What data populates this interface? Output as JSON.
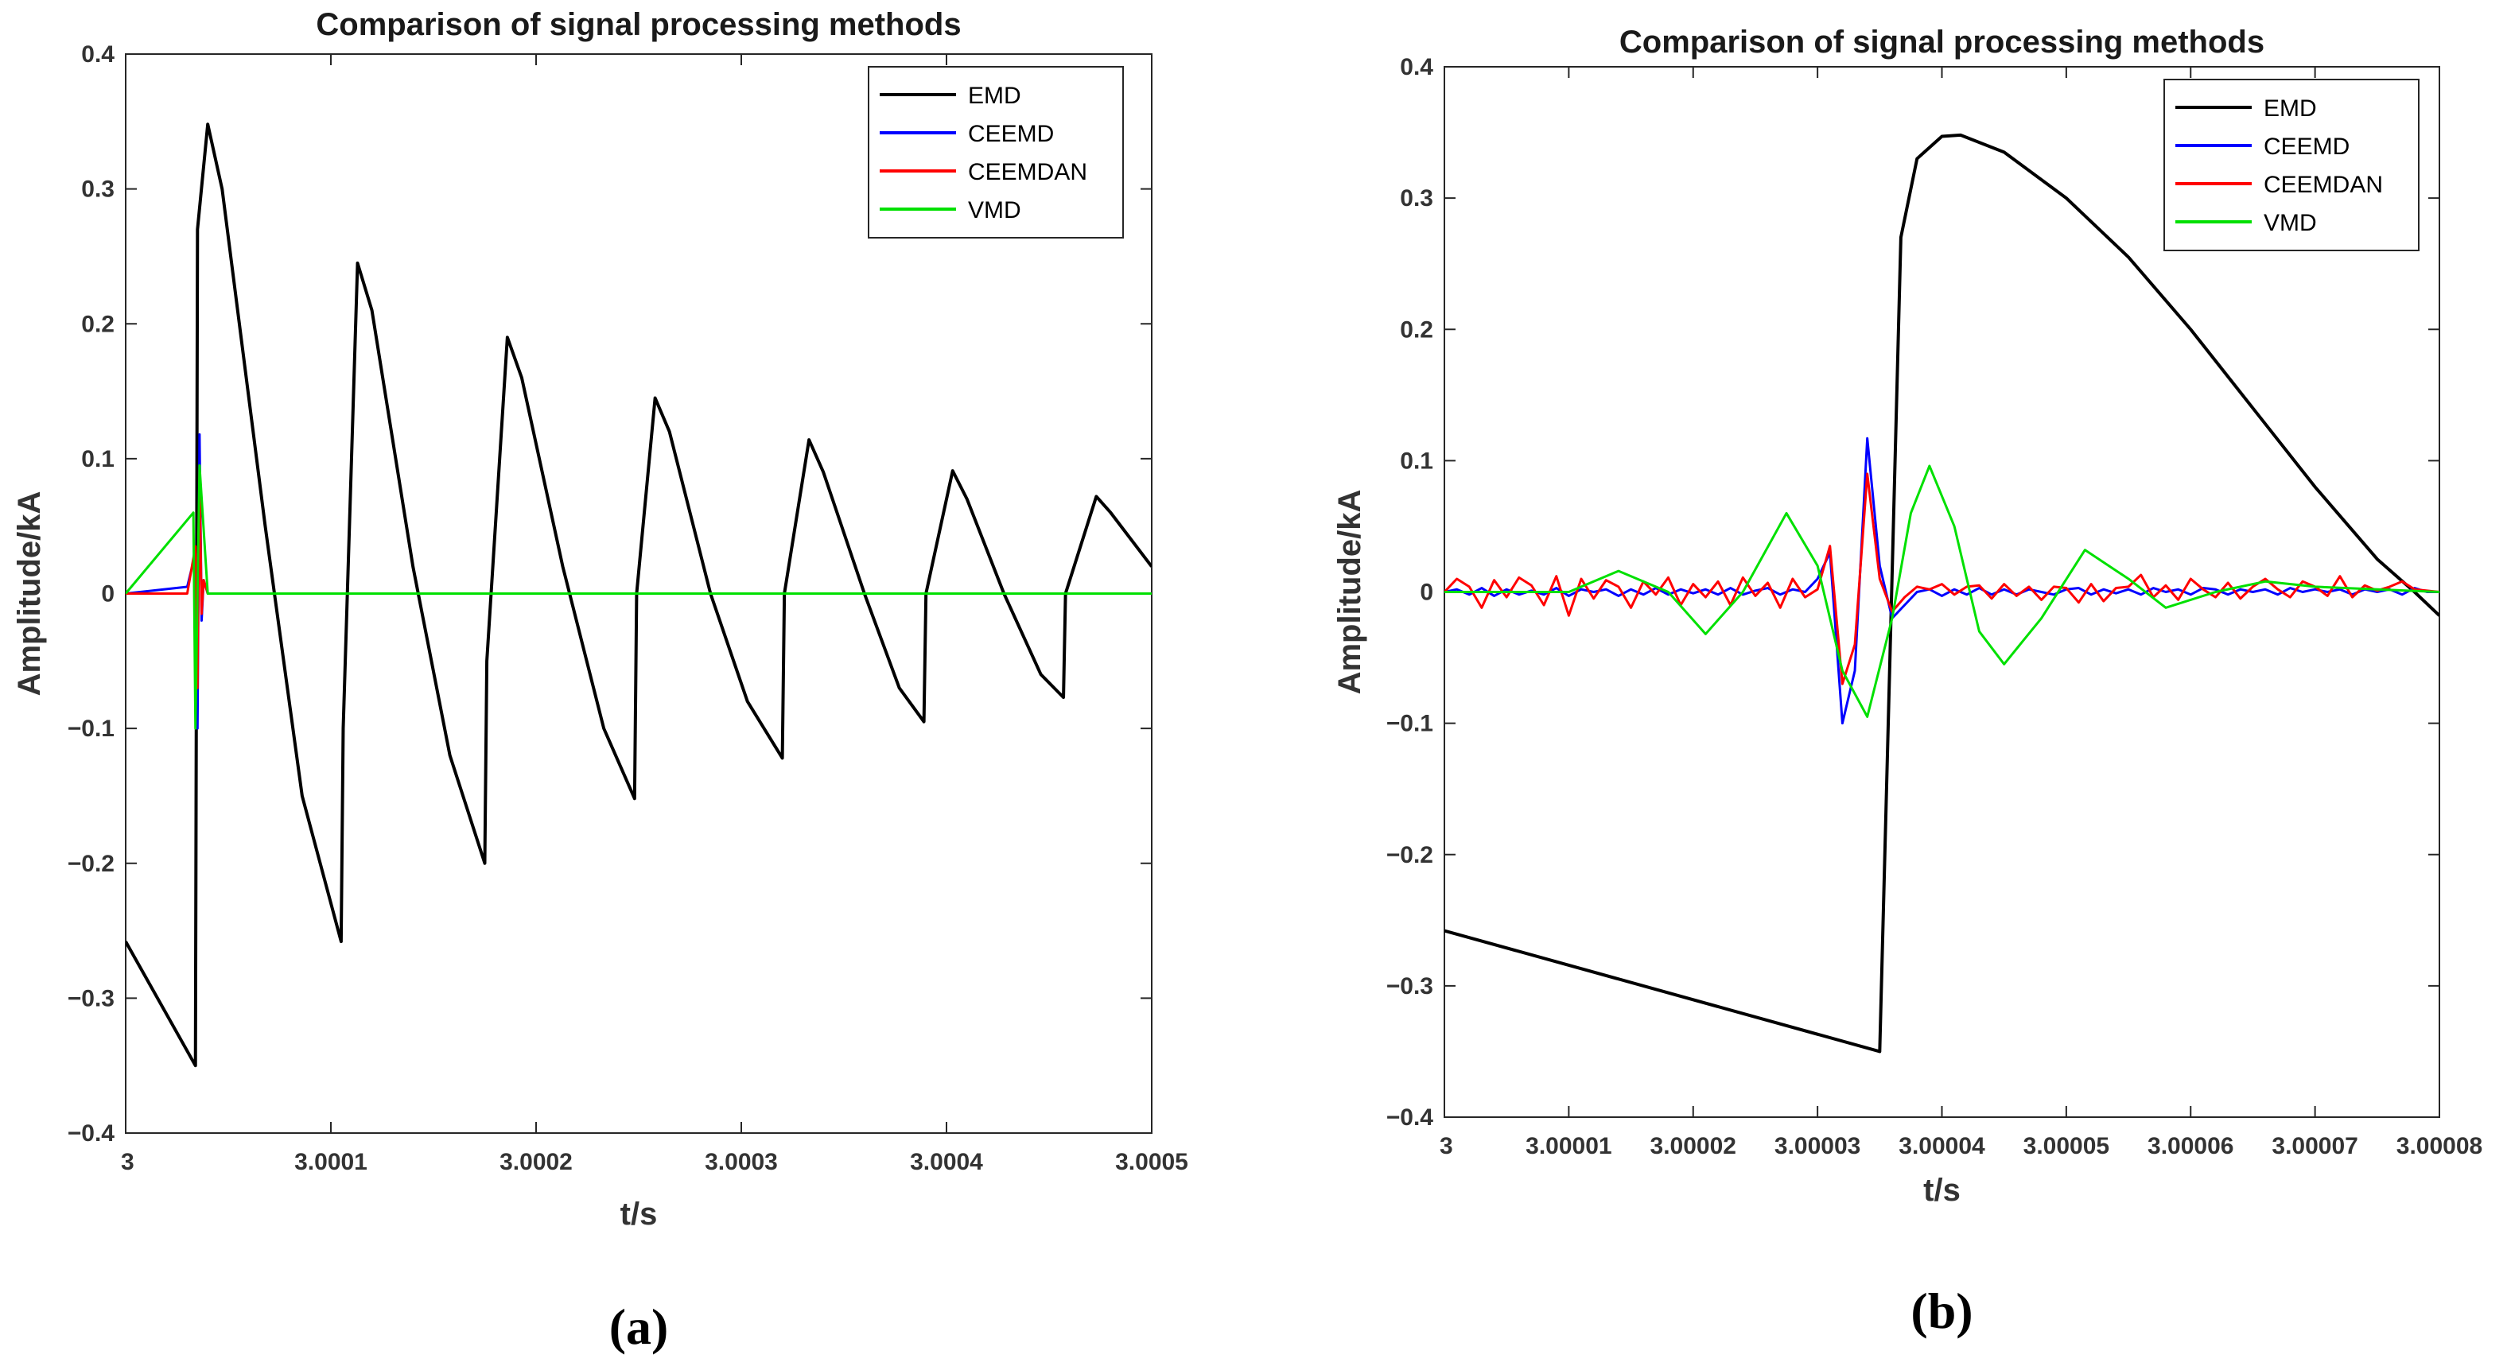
{
  "chart_data": [
    {
      "type": "line",
      "title": "Comparison of signal processing methods",
      "xlabel": "t/s",
      "ylabel": "Amplitude/kA",
      "panel_label": "(a)",
      "xlim": [
        3,
        3.0005
      ],
      "ylim": [
        -0.4,
        0.4
      ],
      "xticks": [
        3,
        3.0001,
        3.0002,
        3.0003,
        3.0004,
        3.0005
      ],
      "xtick_labels": [
        "3",
        "3.0001",
        "3.0002",
        "3.0003",
        "3.0004",
        "3.0005"
      ],
      "yticks": [
        -0.4,
        -0.3,
        -0.2,
        -0.1,
        0,
        0.1,
        0.2,
        0.3,
        0.4
      ],
      "ytick_labels": [
        "−0.4",
        "−0.3",
        "−0.2",
        "−0.1",
        "0",
        "0.1",
        "0.2",
        "0.3",
        "0.4"
      ],
      "legend_position": "top-right",
      "series": [
        {
          "name": "EMD",
          "color": "#000000",
          "x": [
            3,
            3.000034,
            3.000035,
            3.00004,
            3.000047,
            3.000068,
            3.000086,
            3.000105,
            3.000106,
            3.000113,
            3.00012,
            3.00014,
            3.000158,
            3.000175,
            3.000176,
            3.000186,
            3.000193,
            3.000213,
            3.000233,
            3.000248,
            3.000249,
            3.000258,
            3.000265,
            3.000285,
            3.000303,
            3.00032,
            3.000321,
            3.000333,
            3.00034,
            3.00036,
            3.000377,
            3.000389,
            3.00039,
            3.000403,
            3.00041,
            3.000428,
            3.000446,
            3.000457,
            3.000458,
            3.000473,
            3.00048,
            3.0005
          ],
          "values": [
            -0.258,
            -0.35,
            0.27,
            0.348,
            0.3,
            0.05,
            -0.15,
            -0.258,
            -0.1,
            0.245,
            0.21,
            0.02,
            -0.12,
            -0.2,
            -0.05,
            0.19,
            0.16,
            0.02,
            -0.1,
            -0.152,
            0.0,
            0.145,
            0.12,
            0.0,
            -0.08,
            -0.122,
            0.0,
            0.114,
            0.09,
            0.0,
            -0.07,
            -0.095,
            0.0,
            0.091,
            0.07,
            0.0,
            -0.06,
            -0.077,
            0.0,
            0.072,
            0.06,
            0.02
          ]
        },
        {
          "name": "CEEMD",
          "color": "#0000ff",
          "x": [
            3,
            3.00003,
            3.000034,
            3.000035,
            3.000036,
            3.000037,
            3.000038,
            3.00004,
            3.0005
          ],
          "values": [
            0.0,
            0.005,
            0.03,
            -0.1,
            0.118,
            -0.02,
            0.01,
            0.0,
            0.0
          ]
        },
        {
          "name": "CEEMDAN",
          "color": "#ff0000",
          "x": [
            3,
            3.00003,
            3.000034,
            3.000035,
            3.000036,
            3.000037,
            3.000038,
            3.00004,
            3.0005
          ],
          "values": [
            0.0,
            0.0,
            0.035,
            -0.07,
            0.092,
            -0.015,
            0.01,
            0.0,
            0.0
          ]
        },
        {
          "name": "VMD",
          "color": "#00e000",
          "x": [
            3,
            3.000033,
            3.000034,
            3.000035,
            3.000036,
            3.00004,
            3.0001,
            3.0002,
            3.0003,
            3.0004,
            3.0005
          ],
          "values": [
            0.0,
            0.06,
            -0.1,
            0.0,
            0.095,
            0.0,
            0.0,
            0.0,
            0.0,
            0.0,
            0.0
          ]
        }
      ]
    },
    {
      "type": "line",
      "title": "Comparison of signal processing methods",
      "xlabel": "t/s",
      "ylabel": "Amplitude/kA",
      "panel_label": "(b)",
      "xlim": [
        3,
        3.00008
      ],
      "ylim": [
        -0.4,
        0.4
      ],
      "xticks": [
        3,
        3.00001,
        3.00002,
        3.00003,
        3.00004,
        3.00005,
        3.00006,
        3.00007,
        3.00008
      ],
      "xtick_labels": [
        "3",
        "3.00001",
        "3.00002",
        "3.00003",
        "3.00004",
        "3.00005",
        "3.00006",
        "3.00007",
        "3.00008"
      ],
      "yticks": [
        -0.4,
        -0.3,
        -0.2,
        -0.1,
        0,
        0.1,
        0.2,
        0.3,
        0.4
      ],
      "ytick_labels": [
        "−0.4",
        "−0.3",
        "−0.2",
        "−0.1",
        "0",
        "0.1",
        "0.2",
        "0.3",
        "0.4"
      ],
      "legend_position": "top-right",
      "series": [
        {
          "name": "EMD",
          "color": "#000000",
          "x": [
            3,
            3.000035,
            3.0000367,
            3.000038,
            3.00004,
            3.0000415,
            3.000045,
            3.00005,
            3.000055,
            3.00006,
            3.000065,
            3.00007,
            3.000075,
            3.000078,
            3.00008
          ],
          "values": [
            -0.258,
            -0.35,
            0.27,
            0.33,
            0.347,
            0.348,
            0.335,
            0.3,
            0.255,
            0.2,
            0.14,
            0.08,
            0.025,
            0.0,
            -0.018
          ]
        },
        {
          "name": "CEEMD",
          "color": "#0000ff",
          "x": [
            3,
            3.000001,
            3.000002,
            3.000003,
            3.000004,
            3.000005,
            3.000006,
            3.000007,
            3.000008,
            3.000009,
            3.00001,
            3.000011,
            3.000012,
            3.000013,
            3.000014,
            3.000015,
            3.000016,
            3.000017,
            3.000018,
            3.000019,
            3.00002,
            3.000021,
            3.000022,
            3.000023,
            3.000024,
            3.000025,
            3.000026,
            3.000027,
            3.000028,
            3.000029,
            3.00003,
            3.000031,
            3.000032,
            3.000033,
            3.000034,
            3.000035,
            3.000036,
            3.000037,
            3.000038,
            3.000039,
            3.00004,
            3.000041,
            3.000042,
            3.000043,
            3.000044,
            3.000045,
            3.000046,
            3.000047,
            3.000048,
            3.000049,
            3.00005,
            3.000051,
            3.000052,
            3.000053,
            3.000054,
            3.000055,
            3.000056,
            3.000057,
            3.000058,
            3.000059,
            3.00006,
            3.000061,
            3.000062,
            3.000063,
            3.000064,
            3.000065,
            3.000066,
            3.000067,
            3.000068,
            3.000069,
            3.00007,
            3.000071,
            3.000072,
            3.000073,
            3.000074,
            3.000075,
            3.000076,
            3.000077,
            3.000078,
            3.000079,
            3.00008
          ],
          "values": [
            0,
            0.002,
            -0.002,
            0.003,
            -0.003,
            0.002,
            -0.002,
            0.001,
            -0.002,
            0.003,
            -0.003,
            0.002,
            0.0,
            0.002,
            -0.003,
            0.002,
            -0.002,
            0.003,
            -0.002,
            0.002,
            -0.001,
            0.002,
            -0.002,
            0.003,
            -0.002,
            0.001,
            0.003,
            -0.002,
            0.002,
            0.0,
            0.01,
            0.03,
            -0.1,
            -0.06,
            0.117,
            0.02,
            -0.02,
            -0.01,
            0.0,
            0.002,
            -0.003,
            0.002,
            -0.002,
            0.003,
            -0.002,
            0.002,
            -0.002,
            0.002,
            0.0,
            -0.002,
            0.002,
            0.003,
            -0.002,
            0.002,
            -0.001,
            0.002,
            -0.002,
            0.003,
            0.0,
            0.002,
            -0.002,
            0.003,
            0.002,
            -0.002,
            0.002,
            0.0,
            0.002,
            -0.002,
            0.003,
            0.0,
            0.002,
            0.0,
            0.002,
            -0.002,
            0.002,
            0.0,
            0.002,
            -0.002,
            0.003,
            0.0,
            0.0
          ]
        },
        {
          "name": "CEEMDAN",
          "color": "#ff0000",
          "x": [
            3,
            3.000001,
            3.000002,
            3.000003,
            3.000004,
            3.000005,
            3.000006,
            3.000007,
            3.000008,
            3.000009,
            3.00001,
            3.000011,
            3.000012,
            3.000013,
            3.000014,
            3.000015,
            3.000016,
            3.000017,
            3.000018,
            3.000019,
            3.00002,
            3.000021,
            3.000022,
            3.000023,
            3.000024,
            3.000025,
            3.000026,
            3.000027,
            3.000028,
            3.000029,
            3.00003,
            3.000031,
            3.000032,
            3.000033,
            3.000034,
            3.000035,
            3.000036,
            3.000037,
            3.000038,
            3.000039,
            3.00004,
            3.000041,
            3.000042,
            3.000043,
            3.000044,
            3.000045,
            3.000046,
            3.000047,
            3.000048,
            3.000049,
            3.00005,
            3.000051,
            3.000052,
            3.000053,
            3.000054,
            3.000055,
            3.000056,
            3.000057,
            3.000058,
            3.000059,
            3.00006,
            3.000061,
            3.000062,
            3.000063,
            3.000064,
            3.000065,
            3.000066,
            3.000067,
            3.000068,
            3.000069,
            3.00007,
            3.000071,
            3.000072,
            3.000073,
            3.000074,
            3.000075,
            3.000076,
            3.000077,
            3.000078,
            3.000079,
            3.00008
          ],
          "values": [
            0,
            0.01,
            0.004,
            -0.012,
            0.009,
            -0.004,
            0.011,
            0.005,
            -0.01,
            0.012,
            -0.018,
            0.01,
            -0.005,
            0.009,
            0.004,
            -0.012,
            0.008,
            -0.002,
            0.011,
            -0.01,
            0.006,
            -0.004,
            0.008,
            -0.01,
            0.011,
            -0.003,
            0.007,
            -0.012,
            0.01,
            -0.004,
            0.002,
            0.035,
            -0.07,
            -0.04,
            0.09,
            0.01,
            -0.015,
            -0.004,
            0.004,
            0.002,
            0.006,
            -0.002,
            0.004,
            0.005,
            -0.005,
            0.006,
            -0.003,
            0.004,
            -0.006,
            0.004,
            0.003,
            -0.008,
            0.006,
            -0.007,
            0.003,
            0.004,
            0.013,
            -0.004,
            0.005,
            -0.006,
            0.01,
            0.002,
            -0.004,
            0.007,
            -0.005,
            0.004,
            0.01,
            0.002,
            -0.004,
            0.008,
            0.004,
            -0.003,
            0.012,
            -0.004,
            0.005,
            0.001,
            0.004,
            0.008,
            0.002,
            0.001,
            0.0
          ]
        },
        {
          "name": "VMD",
          "color": "#00e000",
          "x": [
            3,
            3.000005,
            3.00001,
            3.000014,
            3.000018,
            3.000021,
            3.000024,
            3.0000275,
            3.00003,
            3.000032,
            3.000034,
            3.000036,
            3.0000375,
            3.000039,
            3.000041,
            3.000043,
            3.000045,
            3.000048,
            3.0000515,
            3.000055,
            3.000058,
            3.000062,
            3.000066,
            3.00007,
            3.000075,
            3.00008
          ],
          "values": [
            0.0,
            0.0,
            0.0,
            0.016,
            0.0,
            -0.032,
            0.0,
            0.06,
            0.02,
            -0.06,
            -0.095,
            -0.02,
            0.06,
            0.096,
            0.05,
            -0.03,
            -0.055,
            -0.02,
            0.032,
            0.01,
            -0.012,
            0.0,
            0.008,
            0.004,
            0.002,
            0.0
          ]
        }
      ]
    }
  ]
}
